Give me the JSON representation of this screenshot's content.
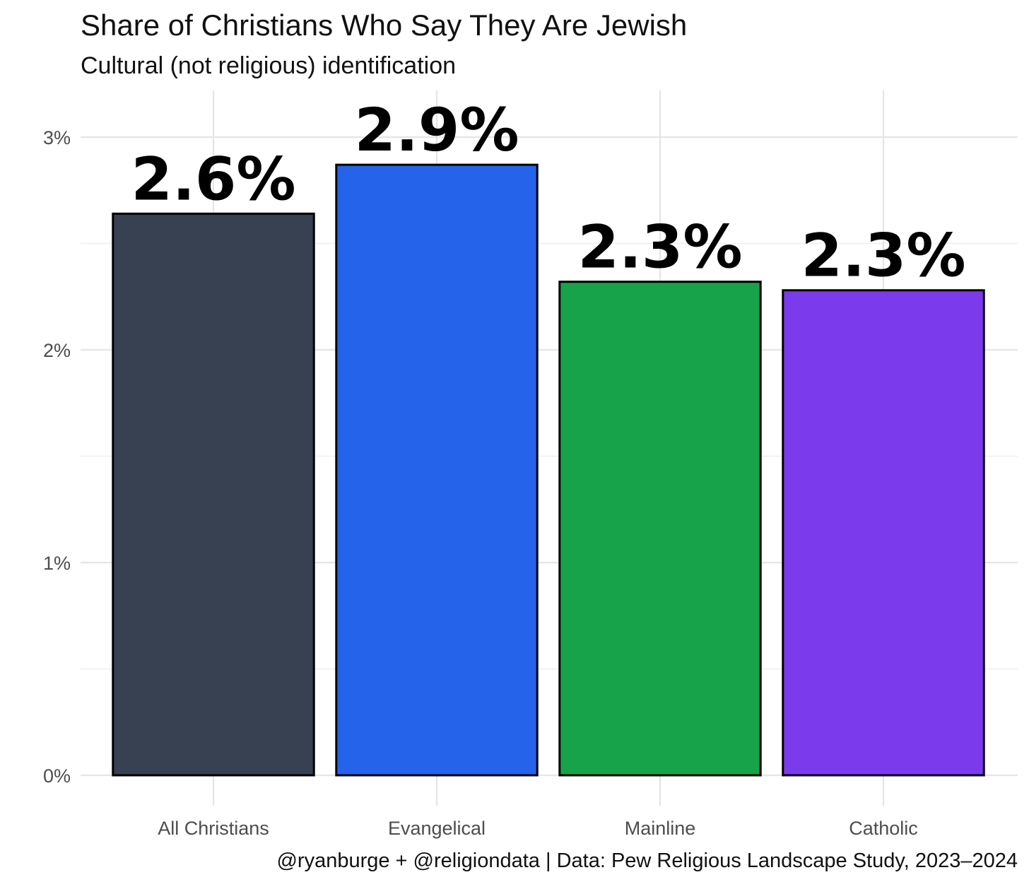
{
  "chart_data": {
    "type": "bar",
    "title": "Share of Christians Who Say They Are Jewish",
    "subtitle": "Cultural (not religious) identification",
    "caption": "@ryanburge + @religiondata | Data: Pew Religious Landscape Study, 2023–2024",
    "xlabel": "",
    "ylabel": "",
    "categories": [
      "All Christians",
      "Evangelical",
      "Mainline",
      "Catholic"
    ],
    "values": [
      2.64,
      2.87,
      2.32,
      2.28
    ],
    "data_labels": [
      "2.6%",
      "2.9%",
      "2.3%",
      "2.3%"
    ],
    "colors": [
      "#374151",
      "#2563eb",
      "#16a34a",
      "#7c3aed"
    ],
    "ylim": [
      0,
      3.2
    ],
    "y_ticks": [
      0,
      1,
      2,
      3
    ],
    "y_tick_labels": [
      "0%",
      "1%",
      "2%",
      "3%"
    ],
    "grid": true,
    "legend": "none"
  }
}
